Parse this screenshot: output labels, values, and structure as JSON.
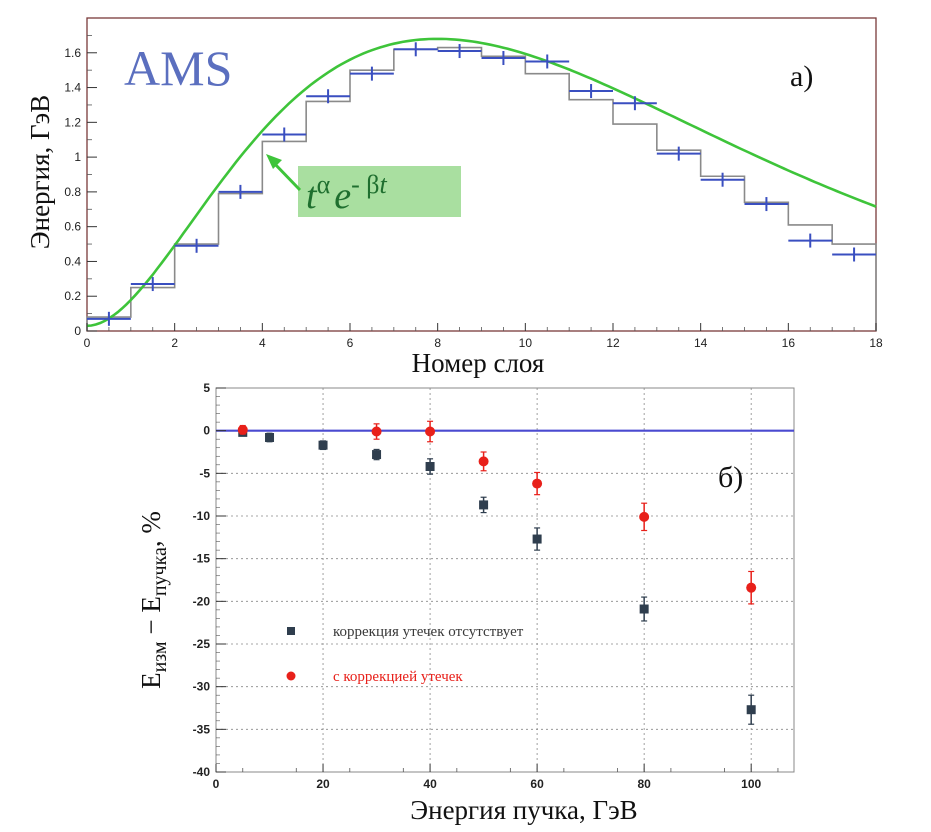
{
  "colors": {
    "histogram": "#8a8a8a",
    "data_points": "#3a4fc0",
    "fit_curve": "#3ec43a",
    "formula_box": "#a9dfa0",
    "frame_top": "#7a3a3a",
    "no_correction": "#2f3e4e",
    "with_correction": "#e8201a",
    "zero_line": "#4a4ad0",
    "grid": "#888888"
  },
  "chart_data": [
    {
      "type": "line",
      "panel_label": "а)",
      "logo": "AMS",
      "formula": {
        "base": "t",
        "exp1": "α",
        "mid": "e",
        "exp2": "- β",
        "exp2_var": "t"
      },
      "xlabel": "Номер слоя",
      "ylabel": "Энергия, ГэВ",
      "xlim": [
        0,
        18
      ],
      "ylim": [
        0,
        1.8
      ],
      "x_ticks": [
        "0",
        "2",
        "4",
        "6",
        "8",
        "10",
        "12",
        "14",
        "16",
        "18"
      ],
      "y_ticks": [
        "0",
        "0.2",
        "0.4",
        "0.6",
        "0.8",
        "1",
        "1.2",
        "1.4",
        "1.6"
      ],
      "grid": false,
      "histogram": {
        "bin_edges": [
          0,
          1,
          2,
          3,
          4,
          5,
          6,
          7,
          8,
          9,
          10,
          11,
          12,
          13,
          14,
          15,
          16,
          17,
          18
        ],
        "values": [
          0.08,
          0.25,
          0.5,
          0.79,
          1.09,
          1.32,
          1.5,
          1.62,
          1.63,
          1.58,
          1.48,
          1.33,
          1.19,
          1.04,
          0.89,
          0.74,
          0.61,
          0.5
        ]
      },
      "data_points": {
        "x": [
          0.5,
          1.5,
          2.5,
          3.5,
          4.5,
          5.5,
          6.5,
          7.5,
          8.5,
          9.5,
          10.5,
          11.5,
          12.5,
          13.5,
          14.5,
          15.5,
          16.5,
          17.5
        ],
        "y": [
          0.07,
          0.27,
          0.49,
          0.8,
          1.13,
          1.35,
          1.48,
          1.62,
          1.61,
          1.57,
          1.55,
          1.38,
          1.31,
          1.02,
          0.87,
          0.73,
          0.52,
          0.44
        ]
      },
      "fit": {
        "name": "tα e-βt",
        "amplitude": 1.65,
        "peak_x": 8.0,
        "alpha": 2.0
      }
    },
    {
      "type": "scatter",
      "panel_label": "б)",
      "xlabel": "Энергия пучка, ГэВ",
      "ylabel_main": "E",
      "ylabel_sub1": "изм",
      "ylabel_mid": " − E",
      "ylabel_sub2": "пучка",
      "ylabel_unit": ", %",
      "xlim": [
        0,
        108
      ],
      "ylim": [
        -40,
        5
      ],
      "x_ticks": [
        "0",
        "20",
        "40",
        "60",
        "80",
        "100"
      ],
      "y_ticks": [
        "5",
        "0",
        "-5",
        "-10",
        "-15",
        "-20",
        "-25",
        "-30",
        "-35",
        "-40"
      ],
      "grid": true,
      "legend_position": "bottom-left",
      "series": [
        {
          "name": "коррекция утечек отсутствует",
          "marker": "square",
          "x": [
            5,
            10,
            20,
            30,
            40,
            50,
            60,
            80,
            100
          ],
          "y": [
            -0.2,
            -0.8,
            -1.7,
            -2.8,
            -4.2,
            -8.7,
            -12.7,
            -20.9,
            -32.7
          ],
          "err": [
            0.4,
            0.5,
            0.5,
            0.6,
            0.9,
            0.9,
            1.3,
            1.4,
            1.7
          ]
        },
        {
          "name": "с коррекцией утечек",
          "marker": "circle",
          "x": [
            5,
            30,
            40,
            50,
            60,
            80,
            100
          ],
          "y": [
            0.1,
            -0.1,
            -0.1,
            -3.6,
            -6.2,
            -10.1,
            -18.4
          ],
          "err": [
            0.5,
            0.9,
            1.2,
            1.1,
            1.3,
            1.6,
            1.9
          ]
        }
      ]
    }
  ]
}
